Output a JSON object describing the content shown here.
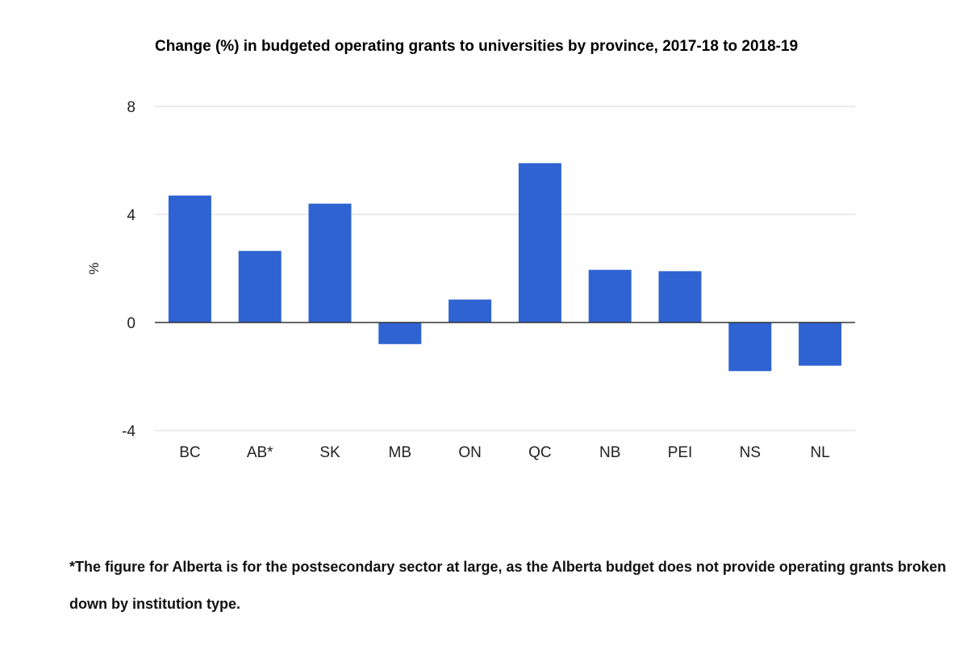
{
  "chart_data": {
    "type": "bar",
    "title": "Change (%) in budgeted operating grants to universities by province, 2017-18 to 2018-19",
    "xlabel": "",
    "ylabel": "%",
    "categories": [
      "BC",
      "AB*",
      "SK",
      "MB",
      "ON",
      "QC",
      "NB",
      "PEI",
      "NS",
      "NL"
    ],
    "values": [
      4.7,
      2.65,
      4.4,
      -0.8,
      0.85,
      5.9,
      1.95,
      1.9,
      -1.8,
      -1.6
    ],
    "ylim": [
      -4,
      8
    ],
    "yticks": [
      -4,
      0,
      4,
      8
    ],
    "grid": true,
    "legend": "none",
    "bar_color": "#2e63d1",
    "footnote": "*The figure for Alberta is for the postsecondary sector at large, as the Alberta budget does not provide operating grants broken down by institution type."
  }
}
